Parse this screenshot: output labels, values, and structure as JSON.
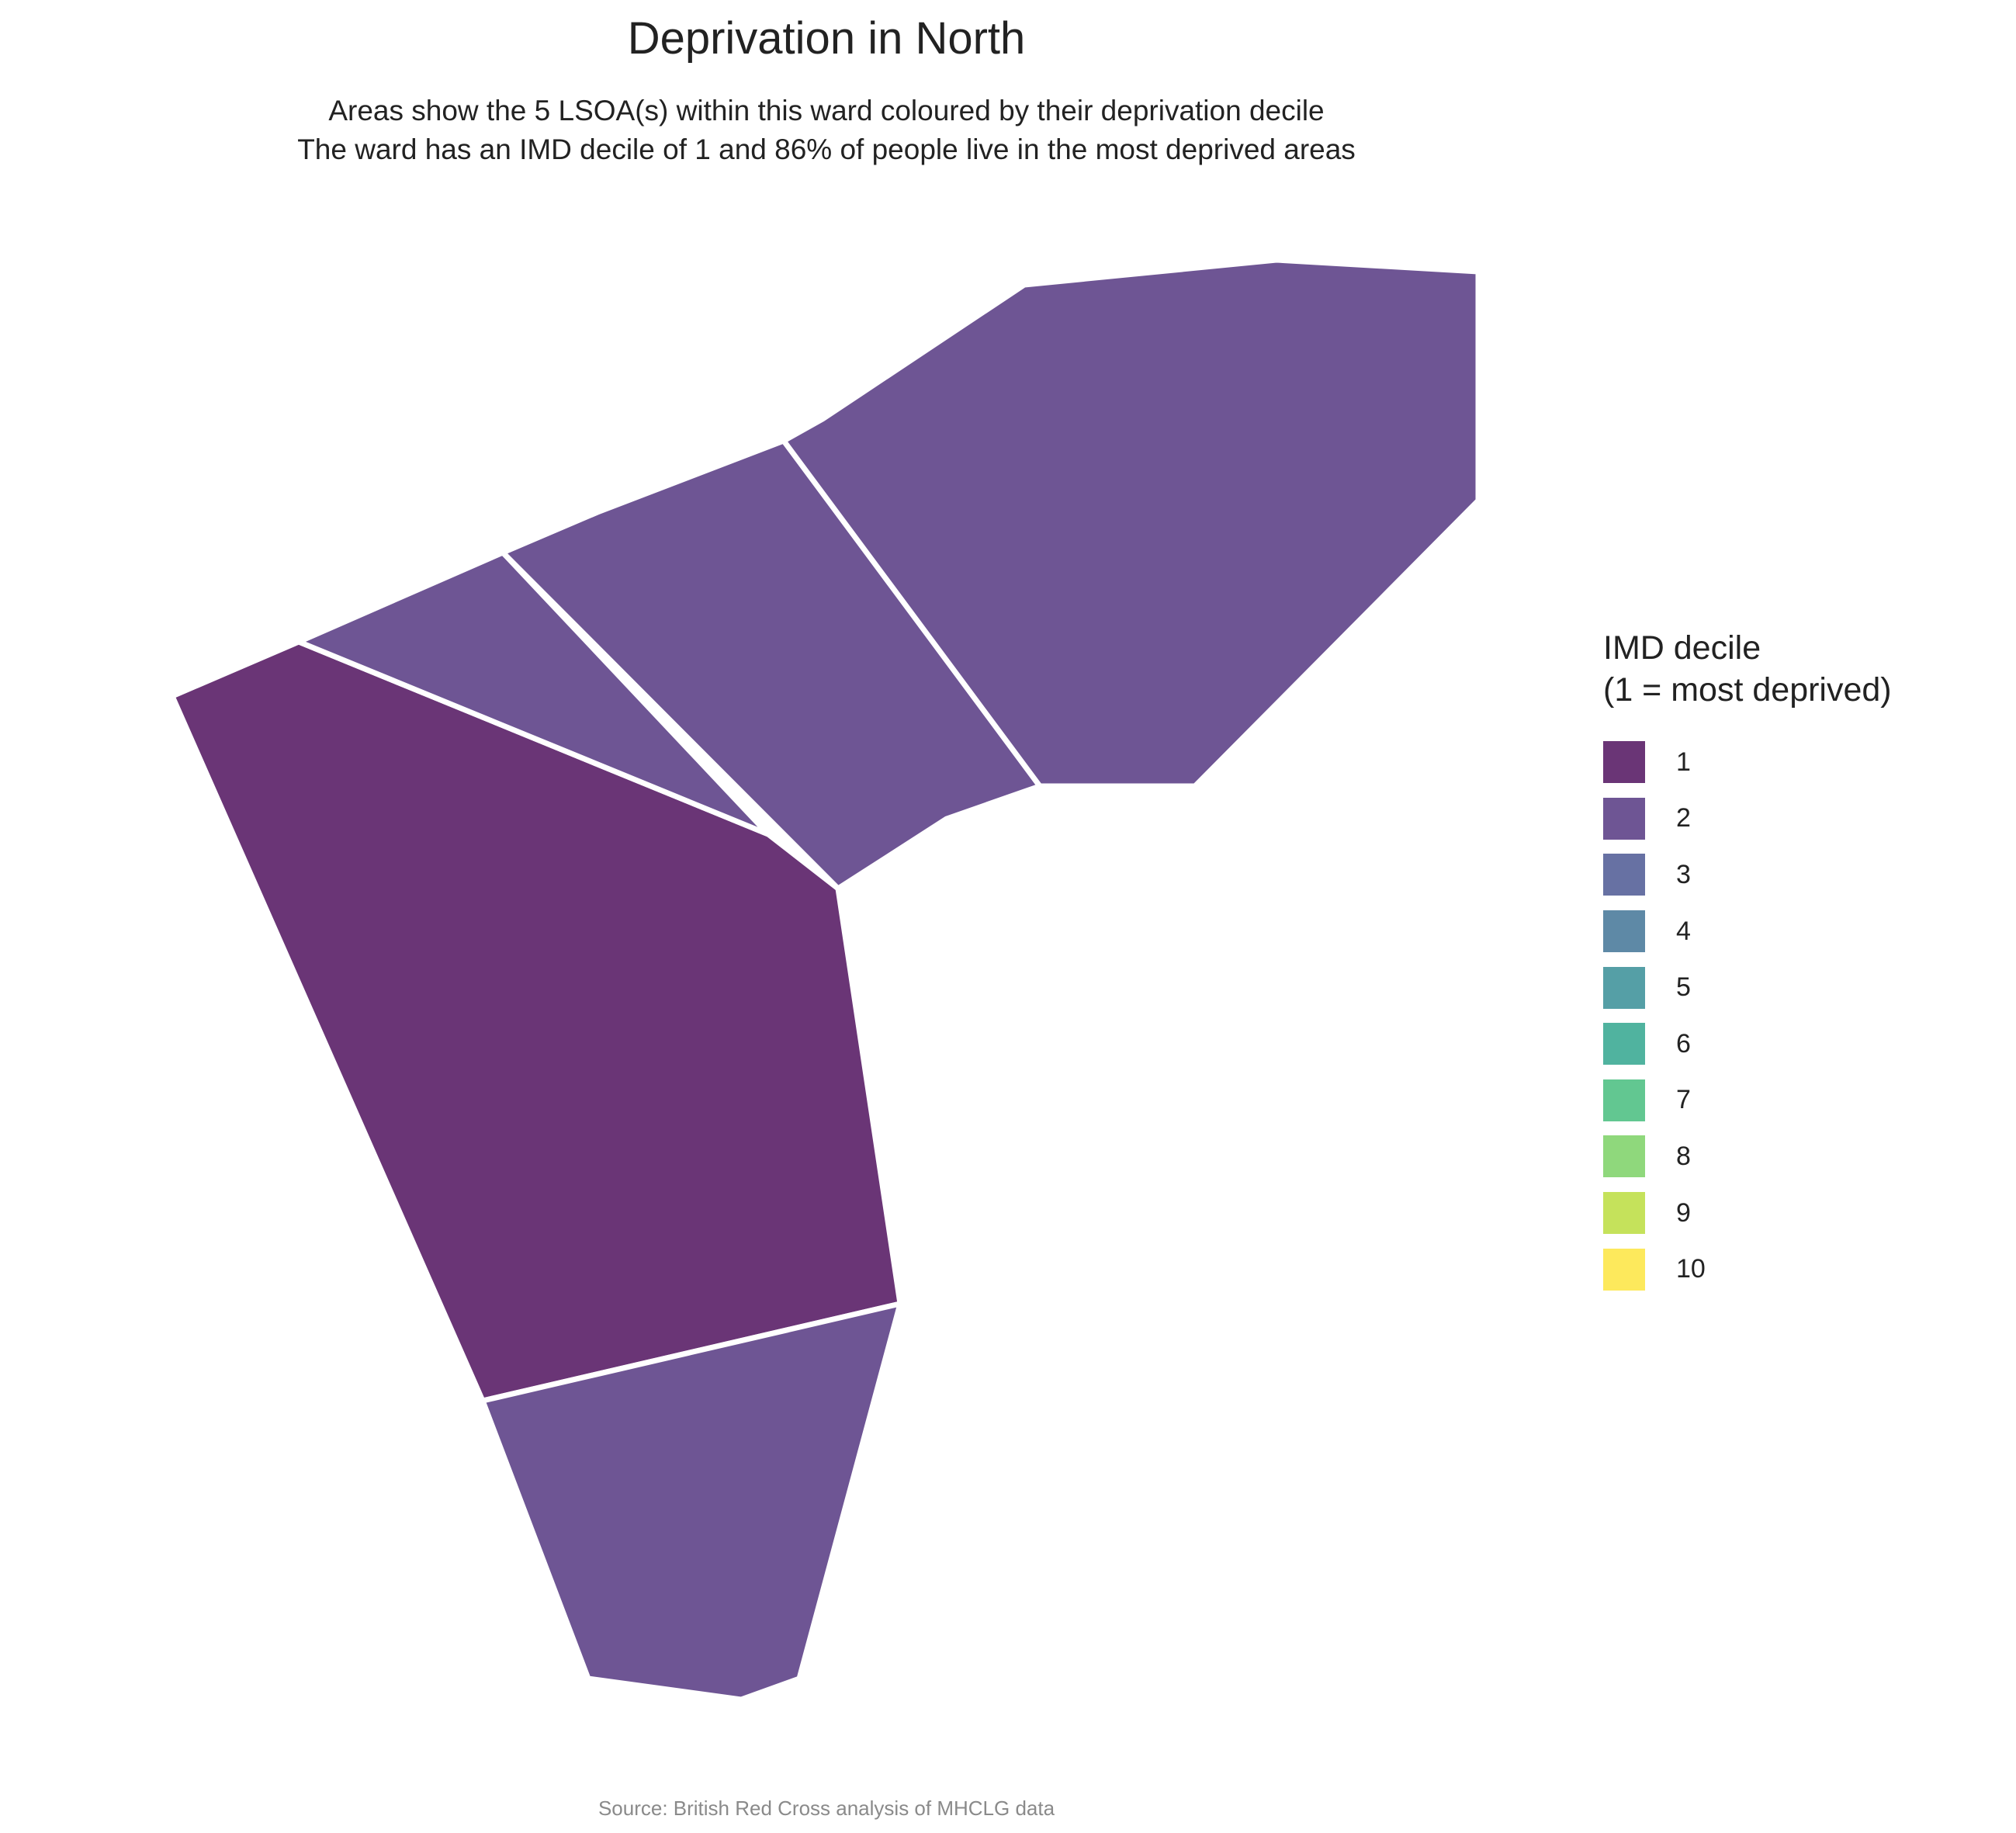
{
  "title": "Deprivation in North",
  "subtitle_lines": [
    "Areas show the 5 LSOA(s) within this ward coloured by their deprivation decile",
    "The ward has an IMD decile of 1 and 86% of people live in the most deprived areas"
  ],
  "legend": {
    "title_lines": [
      "IMD decile",
      "(1 = most deprived)"
    ],
    "items": [
      {
        "label": "1",
        "color": "#6a3576"
      },
      {
        "label": "2",
        "color": "#6e5594"
      },
      {
        "label": "3",
        "color": "#6771a3"
      },
      {
        "label": "4",
        "color": "#5e89a6"
      },
      {
        "label": "5",
        "color": "#559fa6"
      },
      {
        "label": "6",
        "color": "#50b39f"
      },
      {
        "label": "7",
        "color": "#62c791"
      },
      {
        "label": "8",
        "color": "#8fd87c"
      },
      {
        "label": "9",
        "color": "#c5e25b"
      },
      {
        "label": "10",
        "color": "#fde95c"
      }
    ]
  },
  "areas": [
    {
      "id": "lsoa-south-west",
      "decile": 1
    },
    {
      "id": "lsoa-south",
      "decile": 2
    },
    {
      "id": "lsoa-north-west",
      "decile": 2
    },
    {
      "id": "lsoa-central",
      "decile": 2
    },
    {
      "id": "lsoa-north-east",
      "decile": 2
    }
  ],
  "source": "Source: British Red Cross analysis of MHCLG data"
}
